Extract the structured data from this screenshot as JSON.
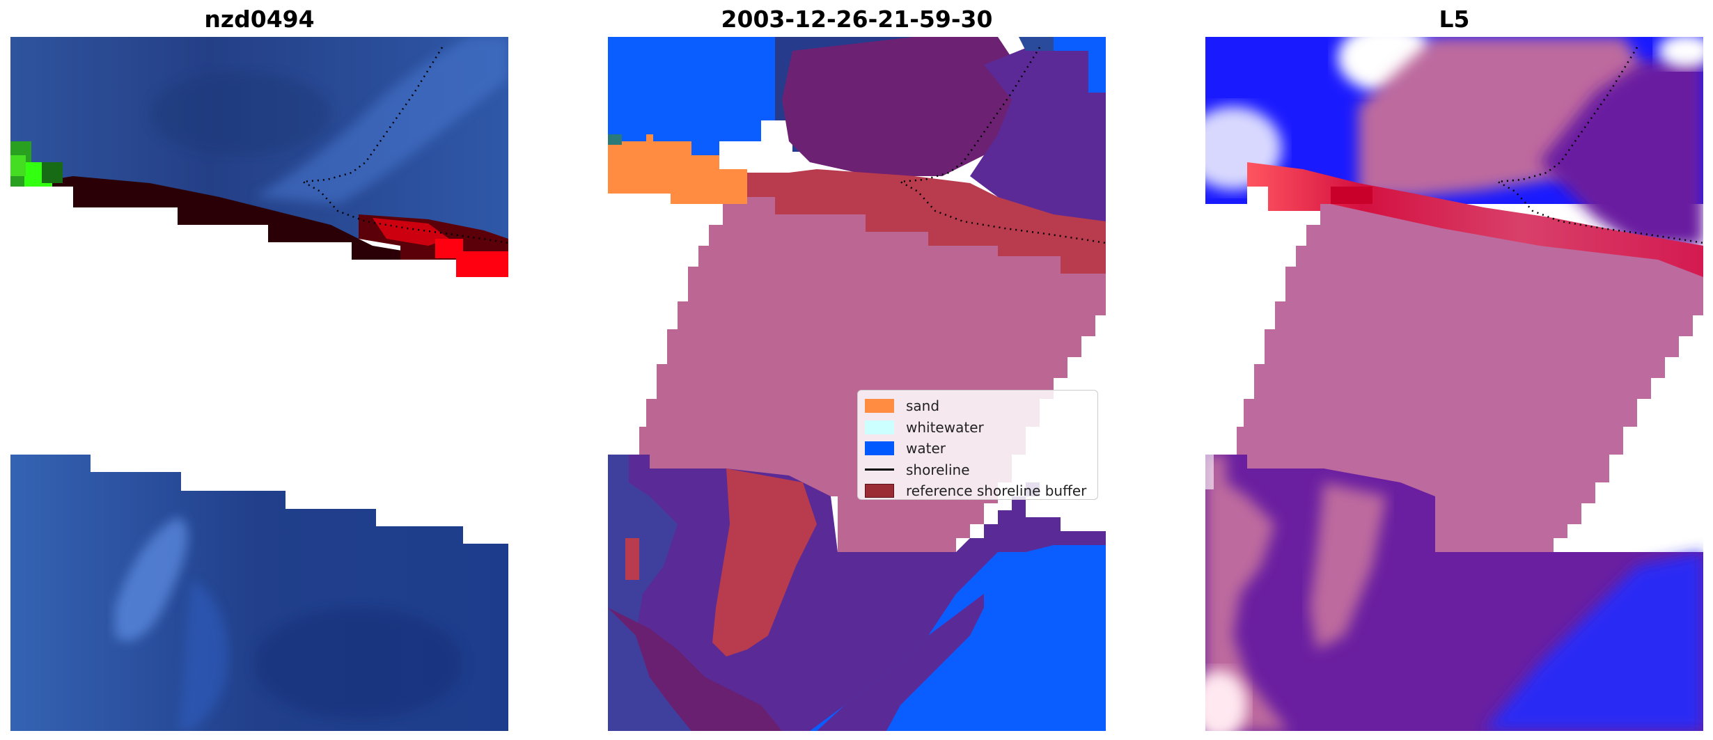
{
  "panels": [
    {
      "title": "nzd0494"
    },
    {
      "title": "2003-12-26-21-59-30"
    },
    {
      "title": "L5"
    }
  ],
  "legend": {
    "items": [
      {
        "label": "sand",
        "color": "#ff8c40",
        "kind": "patch"
      },
      {
        "label": "whitewater",
        "color": "#ccffff",
        "kind": "patch"
      },
      {
        "label": "water",
        "color": "#0059ff",
        "kind": "patch"
      },
      {
        "label": "shoreline",
        "color": "#000000",
        "kind": "line"
      },
      {
        "label": "reference shoreline buffer",
        "color": "#9b2b34",
        "kind": "patch"
      }
    ]
  },
  "colors": {
    "buffer_fill": "#bc6694",
    "water_blue": "#0a5dff",
    "rgb_water": "#2c4f9e",
    "index_blue": "#1a1aff"
  }
}
